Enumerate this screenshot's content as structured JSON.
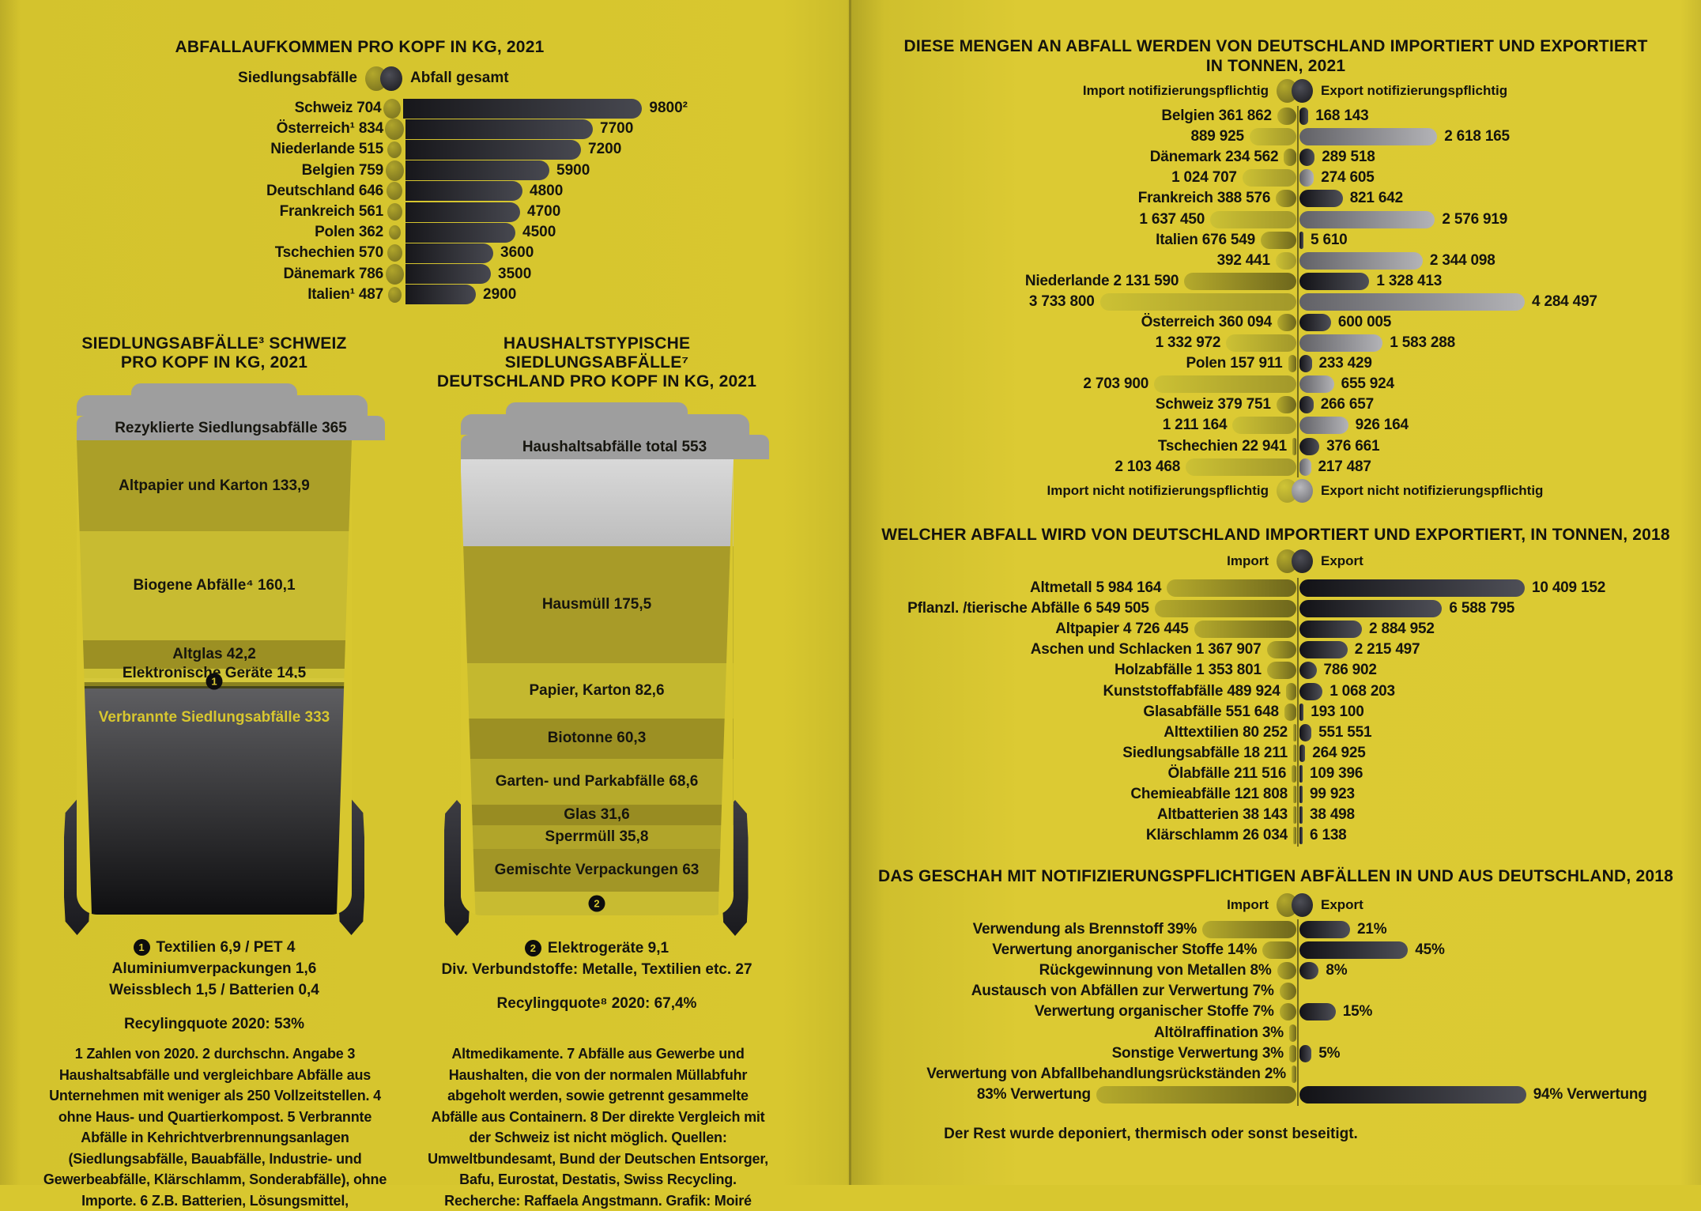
{
  "footnotes": {
    "left": "1 Zahlen von 2020. 2 durchschn. Angabe 3 Haushaltsabfälle und vergleichbare Abfälle aus Unternehmen mit weniger als 250 Vollzeitstellen. 4 ohne Haus- und Quartierkompost. 5 Verbrannte Abfälle in Kehrichtverbrennungsanlagen (Siedlungsabfälle, Bauabfälle, Industrie- und Gewerbeabfälle, Klärschlamm, Sonderabfälle), ohne Importe. 6 Z.B. Batterien, Lösungsmittel,",
    "middle": "Altmedikamente. 7 Abfälle aus Gewerbe und Haushalten, die von der normalen Müllabfuhr abgeholt werden, sowie getrennt gesammelte Abfälle aus Containern. 8 Der direkte Vergleich mit der Schweiz ist nicht möglich. Quellen: Umweltbundesamt, Bund der Deutschen Entsorger, Bafu, Eurostat, Destatis, Swiss Recycling. Recherche: Raffaela Angstmann. Grafik: Moiré"
  },
  "chart_data": [
    {
      "id": "percapita",
      "type": "bar",
      "title": "ABFALLAUFKOMMEN PRO KOPF IN KG, 2021",
      "legend": [
        "Siedlungsabfälle",
        "Abfall gesamt"
      ],
      "xlabel": "",
      "ylabel": "kg pro Kopf",
      "rows": [
        {
          "label": "Schweiz 704",
          "muni": 704,
          "total": 9800,
          "total_label": "9800²"
        },
        {
          "label": "Österreich¹ 834",
          "muni": 834,
          "total": 7700,
          "total_label": "7700"
        },
        {
          "label": "Niederlande 515",
          "muni": 515,
          "total": 7200,
          "total_label": "7200"
        },
        {
          "label": "Belgien 759",
          "muni": 759,
          "total": 5900,
          "total_label": "5900"
        },
        {
          "label": "Deutschland 646",
          "muni": 646,
          "total": 4800,
          "total_label": "4800"
        },
        {
          "label": "Frankreich 561",
          "muni": 561,
          "total": 4700,
          "total_label": "4700"
        },
        {
          "label": "Polen 362",
          "muni": 362,
          "total": 4500,
          "total_label": "4500"
        },
        {
          "label": "Tschechien 570",
          "muni": 570,
          "total": 3600,
          "total_label": "3600"
        },
        {
          "label": "Dänemark 786",
          "muni": 786,
          "total": 3500,
          "total_label": "3500"
        },
        {
          "label": "Italien¹ 487",
          "muni": 487,
          "total": 2900,
          "total_label": "2900"
        }
      ]
    },
    {
      "id": "bin_swiss",
      "type": "stacked_bar",
      "title_line1": "SIEDLUNGSABFÄLLE³ SCHWEIZ",
      "title_line2": "PRO KOPF IN KG, 2021",
      "lid_label": "Rezyklierte Siedlungsabfälle 365",
      "segments": [
        {
          "label": "Altpapier und Karton 133,9",
          "v": 133.9,
          "color": "#ab9f28"
        },
        {
          "label": "Biogene Abfälle⁴ 160,1",
          "v": 160.1,
          "color": "#c8bb31"
        },
        {
          "label": "Altglas 42,2",
          "v": 42.2,
          "color": "#9c9023"
        },
        {
          "label": "Elektronische Geräte 14,5",
          "v": 14.5,
          "color": "#cfc335"
        },
        {
          "label": "",
          "v": 14.4,
          "color": "strips",
          "marker": "1"
        }
      ],
      "burned": {
        "label": "Verbrannte Siedlungsabfälle 333",
        "v": 333
      },
      "annotation_marker": "1",
      "annotation_lines": [
        "Textilien 6,9 / PET 4",
        "Aluminiumverpackungen 1,6",
        "Weissblech 1,5 / Batterien 0,4"
      ],
      "quote": "Recylingquote 2020: 53%"
    },
    {
      "id": "bin_german",
      "type": "stacked_bar",
      "title_line1": "HAUSHALTSTYPISCHE SIEDLUNGSABFÄLLE⁷",
      "title_line2": "DEUTSCHLAND PRO KOPF IN KG, 2021",
      "lid_label": "Haushaltsabfälle total 553",
      "segments": [
        {
          "label": "Hausmüll 175,5",
          "v": 175.5,
          "color": "#a89b28"
        },
        {
          "label": "Papier, Karton 82,6",
          "v": 82.6,
          "color": "#c4b82f"
        },
        {
          "label": "Biotonne 60,3",
          "v": 60.3,
          "color": "#9c9023"
        },
        {
          "label": "Garten- und Parkabfälle 68,6",
          "v": 68.6,
          "color": "#b6aa2b"
        },
        {
          "label": "Glas 31,6",
          "v": 31.6,
          "color": "#988c22"
        },
        {
          "label": "Sperrmüll 35,8",
          "v": 35.8,
          "color": "#b1a52a"
        },
        {
          "label": "Gemischte Verpackungen 63",
          "v": 63,
          "color": "#a29626"
        },
        {
          "label": "",
          "v": 36.1,
          "color": "#c8bb31",
          "marker": "2"
        }
      ],
      "annotation_marker": "2",
      "annotation_lines": [
        "Elektrogeräte 9,1",
        "Div. Verbundstoffe: Metalle, Textilien etc. 27"
      ],
      "quote": "Recylingquote⁸ 2020: 67,4%"
    },
    {
      "id": "de_trade_countries",
      "type": "bar",
      "title_line1": "DIESE MENGEN AN ABFALL WERDEN VON DEUTSCHLAND IMPORTIERT UND  EXPORTIERT",
      "title_line2": "IN TONNEN, 2021",
      "legend_top": [
        "Import notifizierungspflichtig",
        "Export notifizierungspflichtig"
      ],
      "legend_bottom": [
        "Import nicht notifizierungspflichtig",
        "Export  nicht notifizierungspflichtig"
      ],
      "max_value": 4284497,
      "rows": [
        {
          "label": "Belgien 361 862",
          "import": 361862,
          "export": 168143,
          "export_label": "168 143",
          "kind": "dark"
        },
        {
          "label": "889 925",
          "import": 889925,
          "export": 2618165,
          "export_label": "2 618 165",
          "kind": "light"
        },
        {
          "label": "Dänemark 234 562",
          "import": 234562,
          "export": 289518,
          "export_label": "289 518",
          "kind": "dark"
        },
        {
          "label": "1 024 707",
          "import": 1024707,
          "export": 274605,
          "export_label": "274 605",
          "kind": "light"
        },
        {
          "label": "Frankreich 388 576",
          "import": 388576,
          "export": 821642,
          "export_label": "821 642",
          "kind": "dark"
        },
        {
          "label": "1 637 450",
          "import": 1637450,
          "export": 2576919,
          "export_label": "2 576 919",
          "kind": "light"
        },
        {
          "label": "Italien 676 549",
          "import": 676549,
          "export": 5610,
          "export_label": "5 610",
          "kind": "dark"
        },
        {
          "label": "392 441",
          "import": 392441,
          "export": 2344098,
          "export_label": "2 344 098",
          "kind": "light"
        },
        {
          "label": "Niederlande 2 131 590",
          "import": 2131590,
          "export": 1328413,
          "export_label": "1 328 413",
          "kind": "dark"
        },
        {
          "label": "3 733 800",
          "import": 3733800,
          "export": 4284497,
          "export_label": "4 284 497",
          "kind": "light"
        },
        {
          "label": "Österreich 360 094",
          "import": 360094,
          "export": 600005,
          "export_label": "600 005",
          "kind": "dark"
        },
        {
          "label": "1 332 972",
          "import": 1332972,
          "export": 1583288,
          "export_label": "1 583 288",
          "kind": "light"
        },
        {
          "label": "Polen 157 911",
          "import": 157911,
          "export": 233429,
          "export_label": "233 429",
          "kind": "dark"
        },
        {
          "label": "2 703 900",
          "import": 2703900,
          "export": 655924,
          "export_label": "655 924",
          "kind": "light"
        },
        {
          "label": "Schweiz 379 751",
          "import": 379751,
          "export": 266657,
          "export_label": "266 657",
          "kind": "dark"
        },
        {
          "label": "1 211 164",
          "import": 1211164,
          "export": 926164,
          "export_label": "926 164",
          "kind": "light"
        },
        {
          "label": "Tschechien 22 941",
          "import": 22941,
          "export": 376661,
          "export_label": "376 661",
          "kind": "dark"
        },
        {
          "label": "2 103 468",
          "import": 2103468,
          "export": 217487,
          "export_label": "217 487",
          "kind": "light"
        }
      ]
    },
    {
      "id": "de_trade_types",
      "type": "bar",
      "title": "WELCHER ABFALL WIRD VON DEUTSCHLAND IMPORTIERT UND EXPORTIERT, IN TONNEN, 2018",
      "legend": [
        "Import",
        "Export"
      ],
      "max_value": 10409152,
      "rows": [
        {
          "label": "Altmetall 5 984 164",
          "import": 5984164,
          "export": 10409152,
          "export_label": "10 409 152"
        },
        {
          "label": "Pflanzl. /tierische Abfälle 6 549 505",
          "import": 6549505,
          "export": 6588795,
          "export_label": "6 588 795"
        },
        {
          "label": "Altpapier 4 726 445",
          "import": 4726445,
          "export": 2884952,
          "export_label": "2 884 952"
        },
        {
          "label": "Aschen und Schlacken 1 367 907",
          "import": 1367907,
          "export": 2215497,
          "export_label": "2 215 497"
        },
        {
          "label": "Holzabfälle 1 353 801",
          "import": 1353801,
          "export": 786902,
          "export_label": "786 902"
        },
        {
          "label": "Kunststoffabfälle 489 924",
          "import": 489924,
          "export": 1068203,
          "export_label": "1 068 203"
        },
        {
          "label": "Glasabfälle 551 648",
          "import": 551648,
          "export": 193100,
          "export_label": "193 100"
        },
        {
          "label": "Alttextilien 80 252",
          "import": 80252,
          "export": 551551,
          "export_label": "551 551"
        },
        {
          "label": "Siedlungsabfälle 18 211",
          "import": 18211,
          "export": 264925,
          "export_label": "264 925"
        },
        {
          "label": "Ölabfälle 211 516",
          "import": 211516,
          "export": 109396,
          "export_label": "109 396"
        },
        {
          "label": "Chemieabfälle 121 808",
          "import": 121808,
          "export": 99923,
          "export_label": "99 923"
        },
        {
          "label": "Altbatterien 38 143",
          "import": 38143,
          "export": 38498,
          "export_label": "38 498"
        },
        {
          "label": "Klärschlamm 26 034",
          "import": 26034,
          "export": 6138,
          "export_label": "6 138"
        }
      ]
    },
    {
      "id": "treatment",
      "type": "bar",
      "title": "DAS GESCHAH MIT NOTIFIZIERUNGSPFLICHTIGEN ABFÄLLEN IN UND AUS DEUTSCHLAND, 2018",
      "legend": [
        "Import",
        "Export"
      ],
      "max_value": 94,
      "unit": "%",
      "rows": [
        {
          "label": "Verwendung als Brennstoff 39%",
          "import": 39,
          "export": 21,
          "export_label": "21%"
        },
        {
          "label": "Verwertung anorganischer Stoffe 14%",
          "import": 14,
          "export": 45,
          "export_label": "45%"
        },
        {
          "label": "Rückgewinnung von Metallen 8%",
          "import": 8,
          "export": 8,
          "export_label": "8%"
        },
        {
          "label": "Austausch von Abfällen zur Verwertung 7%",
          "import": 7,
          "export": 0,
          "export_label": ""
        },
        {
          "label": "Verwertung organischer Stoffe 7%",
          "import": 7,
          "export": 15,
          "export_label": "15%"
        },
        {
          "label": "Altölraffination 3%",
          "import": 3,
          "export": 0,
          "export_label": ""
        },
        {
          "label": "Sonstige Verwertung 3%",
          "import": 3,
          "export": 5,
          "export_label": "5%"
        },
        {
          "label": "Verwertung von Abfallbehandlungsrückständen 2%",
          "import": 2,
          "export": 0,
          "export_label": ""
        },
        {
          "label": "83% Verwertung",
          "import": 83,
          "export": 94,
          "export_label": "94% Verwertung"
        }
      ],
      "footer": "Der Rest wurde deponiert, thermisch oder sonst beseitigt."
    }
  ]
}
